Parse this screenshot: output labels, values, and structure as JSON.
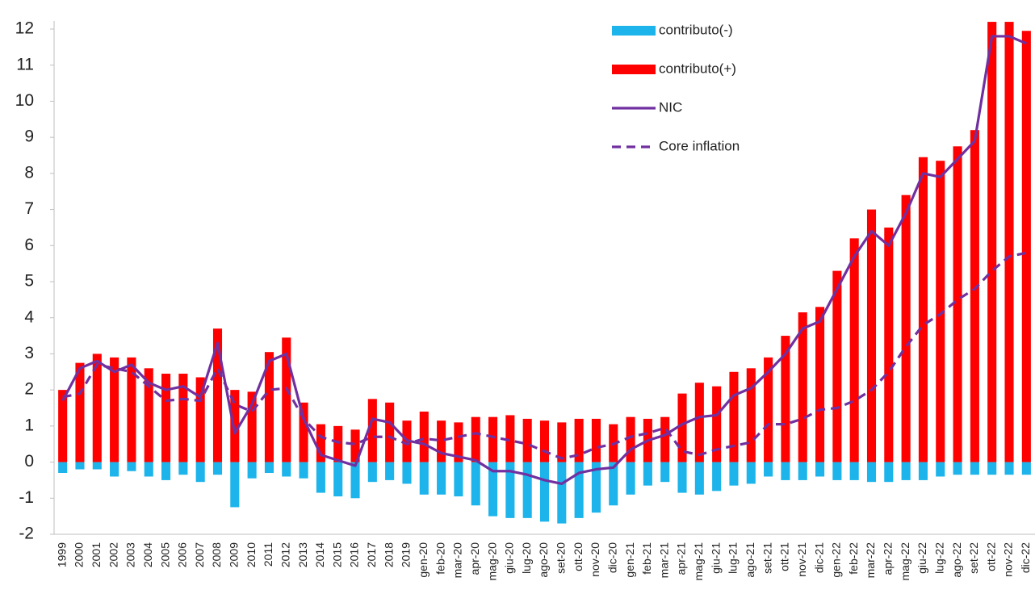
{
  "chart_data": {
    "type": "bar",
    "categories": [
      "1999",
      "2000",
      "2001",
      "2002",
      "2003",
      "2004",
      "2005",
      "2006",
      "2007",
      "2008",
      "2009",
      "2010",
      "2011",
      "2012",
      "2013",
      "2014",
      "2015",
      "2016",
      "2017",
      "2018",
      "2019",
      "gen-20",
      "feb-20",
      "mar-20",
      "apr-20",
      "mag-20",
      "giu-20",
      "lug-20",
      "ago-20",
      "set-20",
      "ott-20",
      "nov-20",
      "dic-20",
      "gen-21",
      "feb-21",
      "mar-21",
      "apr-21",
      "mag-21",
      "giu-21",
      "lug-21",
      "ago-21",
      "set-21",
      "ott-21",
      "nov-21",
      "dic-21",
      "gen-22",
      "feb-22",
      "mar-22",
      "apr-22",
      "mag-22",
      "giu-22",
      "lug-22",
      "ago-22",
      "set-22",
      "ott-22",
      "nov-22",
      "dic-22"
    ],
    "series": [
      {
        "name": "contributo(-)",
        "type": "bar",
        "color": "#1cb4ea",
        "values": [
          -0.3,
          -0.2,
          -0.2,
          -0.4,
          -0.25,
          -0.4,
          -0.5,
          -0.35,
          -0.55,
          -0.35,
          -1.25,
          -0.45,
          -0.3,
          -0.4,
          -0.45,
          -0.85,
          -0.95,
          -1.0,
          -0.55,
          -0.5,
          -0.6,
          -0.9,
          -0.9,
          -0.95,
          -1.2,
          -1.5,
          -1.55,
          -1.55,
          -1.65,
          -1.7,
          -1.55,
          -1.4,
          -1.2,
          -0.9,
          -0.65,
          -0.55,
          -0.85,
          -0.9,
          -0.8,
          -0.65,
          -0.6,
          -0.4,
          -0.5,
          -0.5,
          -0.4,
          -0.5,
          -0.5,
          -0.55,
          -0.55,
          -0.5,
          -0.5,
          -0.4,
          -0.35,
          -0.35,
          -0.35,
          -0.35,
          -0.35
        ]
      },
      {
        "name": "contributo(+)",
        "type": "bar",
        "color": "#ff0000",
        "values": [
          2.0,
          2.75,
          3.0,
          2.9,
          2.9,
          2.6,
          2.45,
          2.45,
          2.35,
          3.7,
          2.0,
          1.95,
          3.05,
          3.45,
          1.65,
          1.05,
          1.0,
          0.9,
          1.75,
          1.65,
          1.15,
          1.4,
          1.15,
          1.1,
          1.25,
          1.25,
          1.3,
          1.2,
          1.15,
          1.1,
          1.2,
          1.2,
          1.05,
          1.25,
          1.2,
          1.25,
          1.9,
          2.2,
          2.1,
          2.5,
          2.6,
          2.9,
          3.5,
          4.15,
          4.3,
          5.3,
          6.2,
          7.0,
          6.5,
          7.4,
          8.45,
          8.35,
          8.75,
          9.2,
          12.2,
          12.2,
          11.95
        ]
      },
      {
        "name": "NIC",
        "type": "line",
        "style": "solid",
        "color": "#7030a0",
        "values": [
          1.7,
          2.6,
          2.8,
          2.5,
          2.7,
          2.2,
          2.0,
          2.1,
          1.8,
          3.3,
          0.8,
          1.6,
          2.8,
          3.0,
          1.2,
          0.2,
          0.05,
          -0.1,
          1.2,
          1.1,
          0.6,
          0.5,
          0.25,
          0.15,
          0.05,
          -0.25,
          -0.25,
          -0.35,
          -0.5,
          -0.6,
          -0.3,
          -0.2,
          -0.15,
          0.35,
          0.6,
          0.75,
          1.05,
          1.25,
          1.3,
          1.85,
          2.05,
          2.5,
          3.0,
          3.7,
          3.9,
          4.8,
          5.7,
          6.4,
          6.0,
          6.9,
          8.0,
          7.9,
          8.4,
          8.9,
          11.8,
          11.8,
          11.6
        ]
      },
      {
        "name": "Core inflation",
        "type": "line",
        "style": "dashed",
        "color": "#7030a0",
        "values": [
          1.8,
          1.9,
          2.7,
          2.6,
          2.5,
          2.1,
          1.7,
          1.75,
          1.7,
          2.6,
          1.6,
          1.4,
          2.0,
          2.05,
          1.2,
          0.7,
          0.55,
          0.5,
          0.7,
          0.7,
          0.5,
          0.65,
          0.6,
          0.7,
          0.8,
          0.7,
          0.6,
          0.5,
          0.3,
          0.1,
          0.2,
          0.4,
          0.5,
          0.7,
          0.8,
          0.95,
          0.3,
          0.2,
          0.35,
          0.45,
          0.55,
          1.05,
          1.05,
          1.2,
          1.45,
          1.5,
          1.7,
          2.0,
          2.5,
          3.2,
          3.8,
          4.1,
          4.5,
          4.8,
          5.3,
          5.7,
          5.8
        ]
      }
    ],
    "ylim": [
      -2,
      12
    ],
    "yticks": [
      -2,
      -1,
      0,
      1,
      2,
      3,
      4,
      5,
      6,
      7,
      8,
      9,
      10,
      11,
      12
    ],
    "grid": false,
    "legend": "upper right"
  }
}
